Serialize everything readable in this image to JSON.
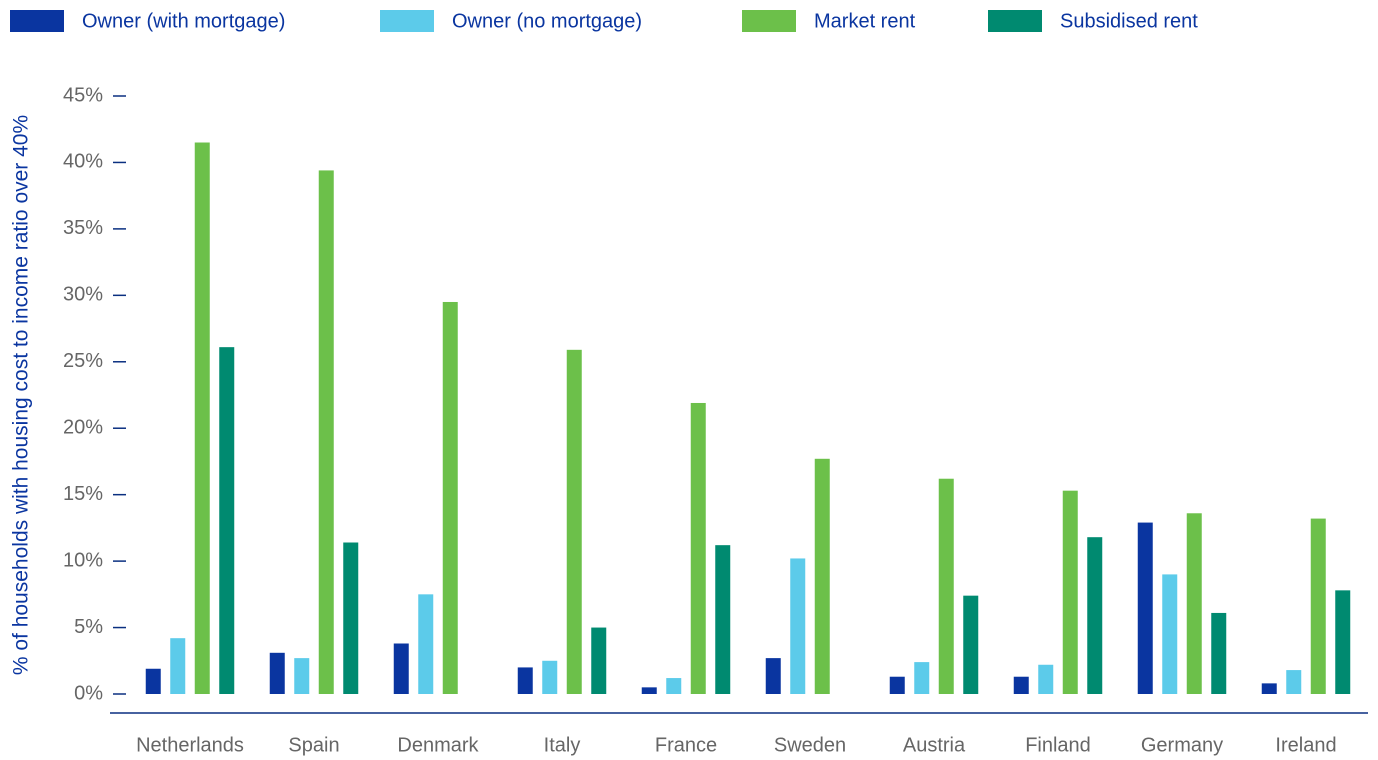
{
  "chart_data": {
    "type": "bar",
    "ylabel": "% of households with housing cost to income ratio over 40%",
    "categories": [
      "Netherlands",
      "Spain",
      "Denmark",
      "Italy",
      "France",
      "Sweden",
      "Austria",
      "Finland",
      "Germany",
      "Ireland"
    ],
    "series": [
      {
        "name": "Owner (with mortgage)",
        "color": "#0a35a0",
        "values": [
          1.9,
          3.1,
          3.8,
          2.0,
          0.5,
          2.7,
          1.3,
          1.3,
          12.9,
          0.8
        ]
      },
      {
        "name": "Owner (no mortgage)",
        "color": "#5ccbea",
        "values": [
          4.2,
          2.7,
          7.5,
          2.5,
          1.2,
          10.2,
          2.4,
          2.2,
          9.0,
          1.8
        ]
      },
      {
        "name": "Market rent",
        "color": "#6cc04a",
        "values": [
          41.5,
          39.4,
          29.5,
          25.9,
          21.9,
          17.7,
          16.2,
          15.3,
          13.6,
          13.2
        ]
      },
      {
        "name": "Subsidised rent",
        "color": "#008a70",
        "values": [
          26.1,
          11.4,
          null,
          5.0,
          11.2,
          null,
          7.4,
          11.8,
          6.1,
          7.8
        ]
      }
    ],
    "ylim": [
      0,
      45
    ],
    "yticks": [
      {
        "value": 0,
        "label": "0%"
      },
      {
        "value": 5,
        "label": "5%"
      },
      {
        "value": 10,
        "label": "10%"
      },
      {
        "value": 15,
        "label": "15%"
      },
      {
        "value": 20,
        "label": "20%"
      },
      {
        "value": 25,
        "label": "25%"
      },
      {
        "value": 30,
        "label": "30%"
      },
      {
        "value": 35,
        "label": "35%"
      },
      {
        "value": 40,
        "label": "40%"
      },
      {
        "value": 45,
        "label": "45%"
      }
    ],
    "grid": false,
    "legend": "top"
  }
}
